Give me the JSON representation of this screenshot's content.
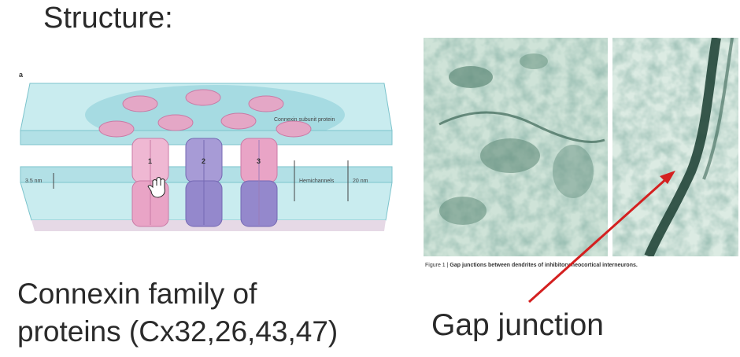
{
  "heading": "Structure:",
  "caption_left": {
    "line1": "Connexin family of",
    "line2": "proteins (Cx32,26,43,47)"
  },
  "caption_right": "Gap junction",
  "diagram": {
    "panel_letter": "a",
    "label_subunit": "Connexin subunit protein",
    "label_hemichannels": "Hemichannels",
    "label_gap": "3.5 nm",
    "label_height": "20 nm",
    "channel_numbers": [
      "1",
      "2",
      "3"
    ],
    "colors": {
      "membrane": "#b7e3e8",
      "membrane_edge": "#7cc3cc",
      "pink": "#e7a6c7",
      "purple": "#9a8fd0"
    }
  },
  "micrograph": {
    "figure_label": "Figure 1 |",
    "figure_title": "Gap junctions between dendrites of inhibitory neocortical interneurons."
  },
  "arrow_color": "#d42020"
}
